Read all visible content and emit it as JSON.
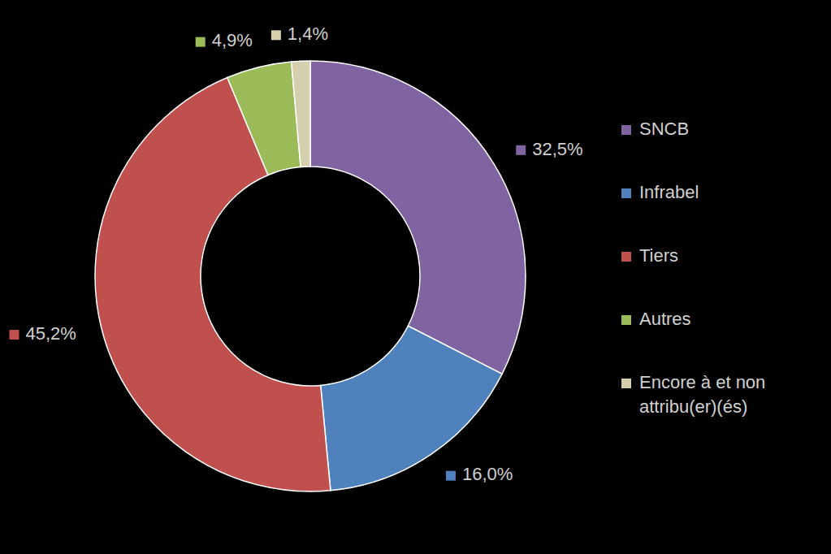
{
  "chart_data": {
    "type": "pie",
    "categories": [
      "SNCB",
      "Infrabel",
      "Tiers",
      "Autres",
      "Encore à et non attribu(er)(és)"
    ],
    "values": [
      32.5,
      16.0,
      45.2,
      4.9,
      1.4
    ],
    "value_labels": [
      "32,5%",
      "16,0%",
      "45,2%",
      "4,9%",
      "1,4%"
    ],
    "colors": [
      "#8064a2",
      "#4f81bd",
      "#c0504d",
      "#9bbb59",
      "#d6cfae"
    ],
    "data_labels": true,
    "legend": "right"
  }
}
